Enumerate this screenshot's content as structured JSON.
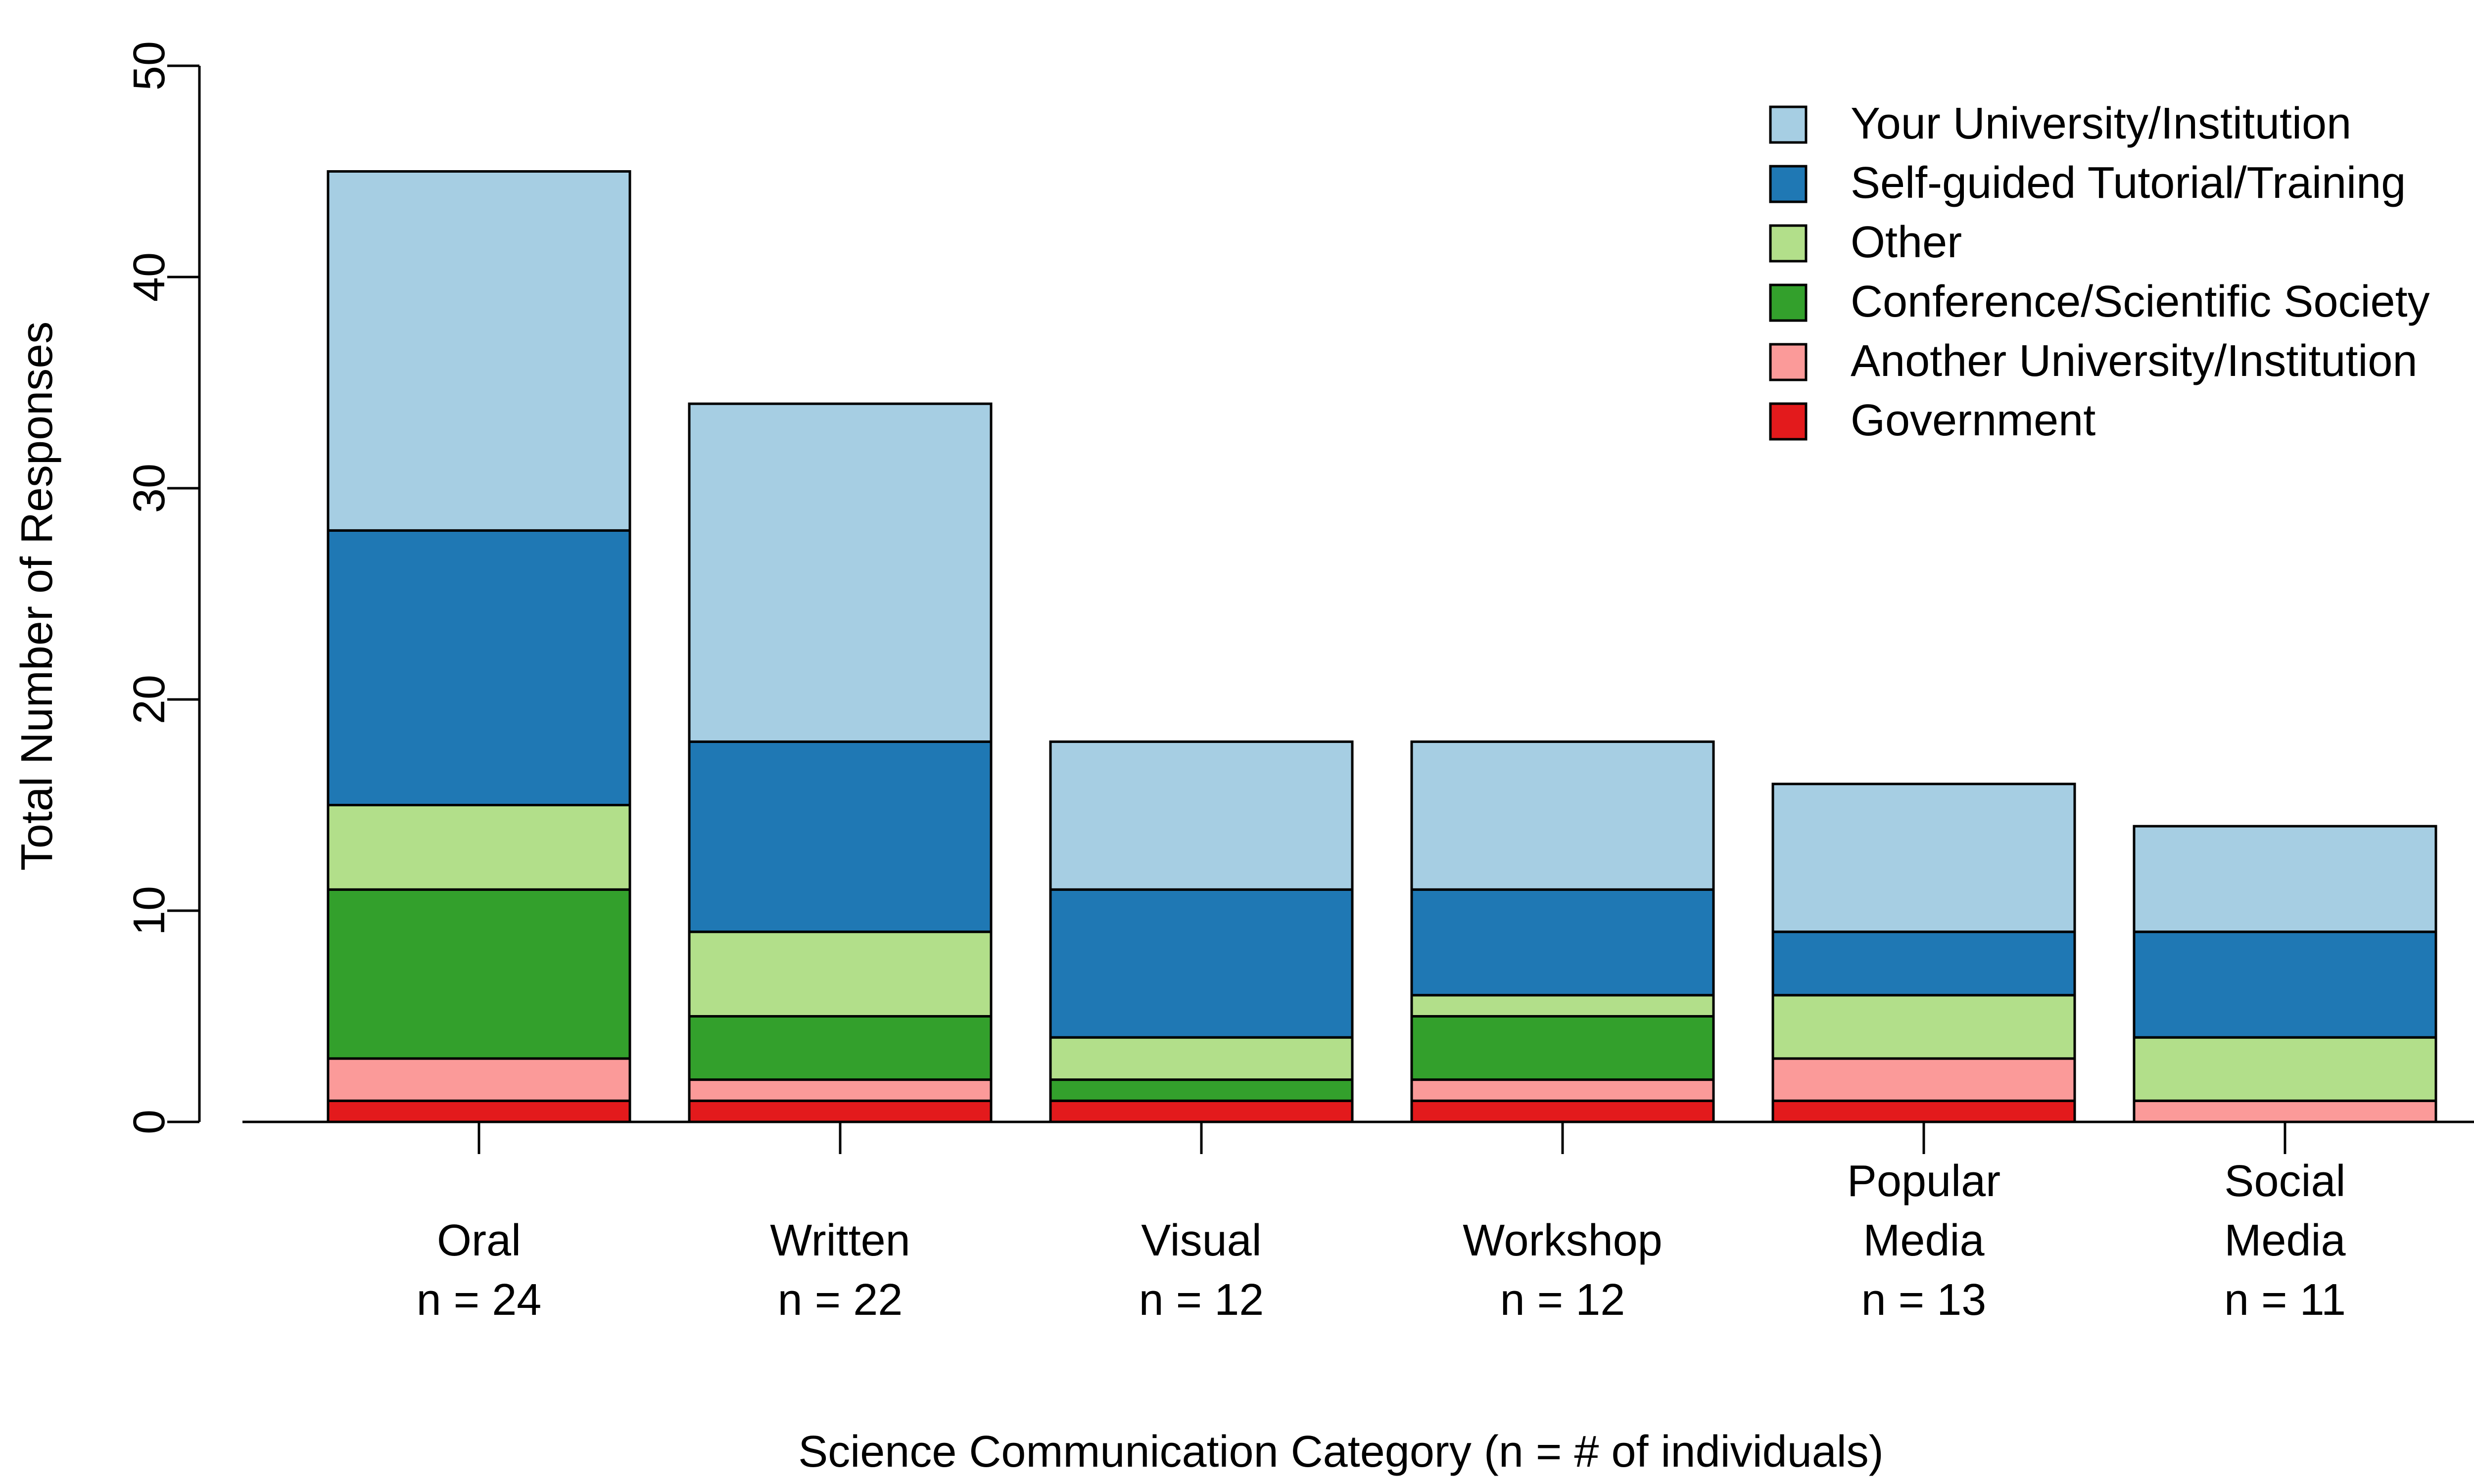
{
  "chart_data": {
    "type": "bar",
    "stacked": true,
    "grid": false,
    "legend_position": "top-right",
    "title": "",
    "xlabel": "Science Communication Category (n = # of individuals)",
    "ylabel": "Total Number of Responses",
    "ylim": [
      0,
      50
    ],
    "yticks": [
      "0",
      "10",
      "20",
      "30",
      "40",
      "50"
    ],
    "categories": [
      {
        "lines": [
          "Oral",
          "n = 24"
        ]
      },
      {
        "lines": [
          "Written",
          "n = 22"
        ]
      },
      {
        "lines": [
          "Visual",
          "n = 12"
        ]
      },
      {
        "lines": [
          "Workshop",
          "n = 12"
        ]
      },
      {
        "lines": [
          "Popular",
          "Media",
          "n = 13"
        ]
      },
      {
        "lines": [
          "Social",
          "Media",
          "n = 11"
        ]
      }
    ],
    "series": [
      {
        "name": "Government",
        "color": "#e31a1c",
        "values": [
          1,
          1,
          1,
          1,
          1,
          0
        ]
      },
      {
        "name": "Another University/Institution",
        "color": "#fb9a99",
        "values": [
          2,
          1,
          0,
          1,
          2,
          1
        ]
      },
      {
        "name": "Conference/Scientific Society",
        "color": "#33a02c",
        "values": [
          8,
          3,
          1,
          3,
          0,
          0
        ]
      },
      {
        "name": "Other",
        "color": "#b2df8a",
        "values": [
          4,
          4,
          2,
          1,
          3,
          3
        ]
      },
      {
        "name": "Self-guided Tutorial/Training",
        "color": "#1f78b4",
        "values": [
          13,
          9,
          7,
          5,
          3,
          5
        ]
      },
      {
        "name": "Your University/Institution",
        "color": "#a6cee3",
        "values": [
          17,
          16,
          7,
          7,
          7,
          5
        ]
      }
    ]
  }
}
